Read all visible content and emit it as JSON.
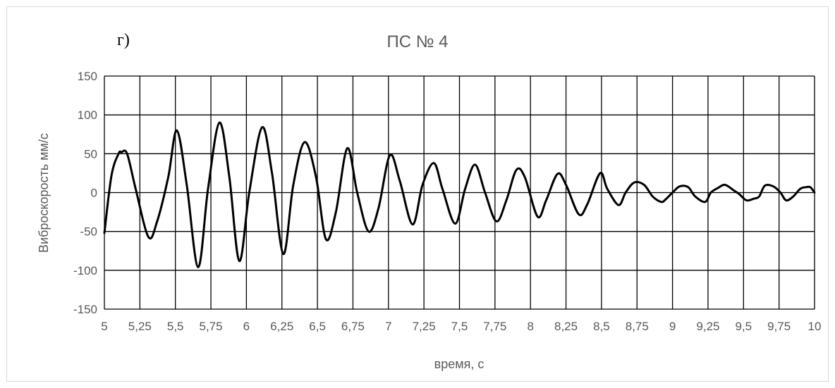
{
  "panel_label": "г)",
  "chart_data": {
    "type": "line",
    "title": "ПС № 4",
    "xlabel": "время, с",
    "ylabel": "Виброскорость мм/с",
    "xlim": [
      5,
      10
    ],
    "ylim": [
      -150,
      150
    ],
    "x_ticks": [
      5,
      5.25,
      5.5,
      5.75,
      6,
      6.25,
      6.5,
      6.75,
      7,
      7.25,
      7.5,
      7.75,
      8,
      8.25,
      8.5,
      8.75,
      9,
      9.25,
      9.5,
      9.75,
      10
    ],
    "x_tick_labels": [
      "5",
      "5,25",
      "5,5",
      "5,75",
      "6",
      "6,25",
      "6,5",
      "6,75",
      "7",
      "7,25",
      "7,5",
      "7,75",
      "8",
      "8,25",
      "8,5",
      "8,75",
      "9",
      "9,25",
      "9,5",
      "9,75",
      "10"
    ],
    "y_ticks": [
      150,
      100,
      50,
      0,
      -50,
      -100,
      -150
    ],
    "y_tick_labels": [
      "150",
      "100",
      "50",
      "0",
      "-50",
      "-100",
      "-150"
    ],
    "grid": true,
    "line_color": "#000000",
    "series": [
      {
        "x": [
          5.0,
          5.05,
          5.1,
          5.12,
          5.16,
          5.22,
          5.31,
          5.37,
          5.45,
          5.51,
          5.58,
          5.66,
          5.73,
          5.81,
          5.88,
          5.95,
          6.02,
          6.11,
          6.18,
          6.26,
          6.33,
          6.41,
          6.49,
          6.56,
          6.63,
          6.71,
          6.78,
          6.86,
          6.93,
          7.01,
          7.08,
          7.17,
          7.24,
          7.32,
          7.38,
          7.47,
          7.54,
          7.61,
          7.68,
          7.76,
          7.83,
          7.9,
          7.96,
          8.05,
          8.11,
          8.19,
          8.25,
          8.34,
          8.4,
          8.49,
          8.54,
          8.62,
          8.67,
          8.73,
          8.8,
          8.86,
          8.92,
          8.95,
          9.0,
          9.05,
          9.11,
          9.16,
          9.23,
          9.27,
          9.32,
          9.37,
          9.43,
          9.47,
          9.52,
          9.57,
          9.61,
          9.65,
          9.71,
          9.76,
          9.8,
          9.85,
          9.9,
          9.94,
          9.97,
          10.0
        ],
        "y": [
          -52,
          22,
          50,
          52,
          50,
          5,
          -57,
          -38,
          20,
          80,
          10,
          -96,
          5,
          90,
          20,
          -88,
          0,
          84,
          25,
          -79,
          10,
          65,
          20,
          -60,
          -25,
          57,
          0,
          -50,
          -20,
          48,
          15,
          -41,
          10,
          38,
          5,
          -40,
          5,
          36,
          0,
          -37,
          -10,
          29,
          20,
          -31,
          -10,
          24,
          10,
          -28,
          -15,
          25,
          5,
          -16,
          0,
          13,
          10,
          -5,
          -12,
          -9,
          0,
          8,
          7,
          -5,
          -12,
          0,
          6,
          10,
          3,
          -2,
          -10,
          -8,
          -5,
          9,
          8,
          0,
          -10,
          -5,
          5,
          7,
          7,
          0
        ]
      }
    ]
  }
}
